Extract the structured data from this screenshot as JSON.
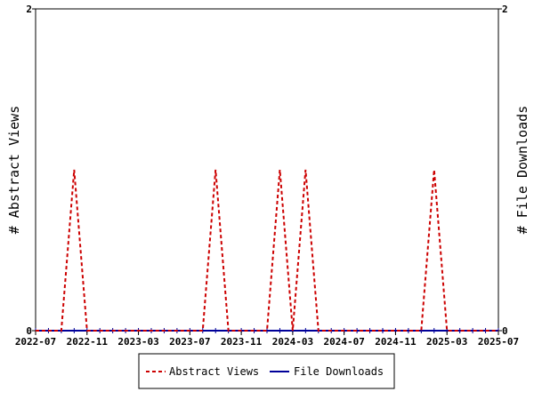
{
  "chart_data": {
    "type": "line",
    "x_start": "2022-07",
    "x_end": "2025-07",
    "x_ticks": [
      "2022-07",
      "2022-11",
      "2023-03",
      "2023-07",
      "2023-11",
      "2024-03",
      "2024-07",
      "2024-11",
      "2025-03",
      "2025-07"
    ],
    "ylabel_left": "# Abstract Views",
    "ylabel_right": "# File Downloads",
    "ylim_left": [
      0,
      2
    ],
    "ylim_right": [
      0,
      2
    ],
    "y_ticks_left": [
      "0",
      "2"
    ],
    "y_ticks_right": [
      "0",
      "2"
    ],
    "legend_position": "bottom",
    "series": [
      {
        "name": "Abstract Views",
        "color": "#cc0000",
        "style": "dashed",
        "axis": "left",
        "points": [
          [
            "2022-07",
            0
          ],
          [
            "2022-09",
            0
          ],
          [
            "2022-10",
            1
          ],
          [
            "2022-11",
            0
          ],
          [
            "2023-08",
            0
          ],
          [
            "2023-09",
            1
          ],
          [
            "2023-10",
            0
          ],
          [
            "2024-01",
            0
          ],
          [
            "2024-02",
            1
          ],
          [
            "2024-03",
            0
          ],
          [
            "2024-04",
            1
          ],
          [
            "2024-05",
            0
          ],
          [
            "2025-01",
            0
          ],
          [
            "2025-02",
            1
          ],
          [
            "2025-03",
            0
          ],
          [
            "2025-07",
            0
          ]
        ]
      },
      {
        "name": "File Downloads",
        "color": "#000099",
        "style": "solid",
        "axis": "right",
        "points": [
          [
            "2022-07",
            0
          ],
          [
            "2025-07",
            0
          ]
        ]
      }
    ]
  }
}
